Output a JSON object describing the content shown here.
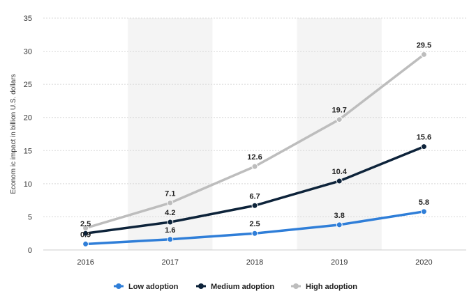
{
  "chart_data": {
    "type": "line",
    "x": [
      "2016",
      "2017",
      "2018",
      "2019",
      "2020"
    ],
    "ylabel": "Econom ic impact in billion U.S. dollars",
    "ylim": [
      0,
      35
    ],
    "yticks": [
      0,
      5,
      10,
      15,
      20,
      25,
      30,
      35
    ],
    "grid": true,
    "legend_position": "bottom-center",
    "series": [
      {
        "name": "Low adoption",
        "color": "#2f7ed8",
        "values": [
          0.9,
          1.6,
          2.5,
          3.8,
          5.8
        ],
        "labels": [
          "0.9",
          "1.6",
          "2.5",
          "3.8",
          "5.8"
        ]
      },
      {
        "name": "Medium adoption",
        "color": "#0d233a",
        "values": [
          2.5,
          4.2,
          6.7,
          10.4,
          15.6
        ],
        "labels": [
          "2.5",
          "4.2",
          "6.7",
          "10.4",
          "15.6"
        ]
      },
      {
        "name": "High adoption",
        "color": "#bdbdbd",
        "values": [
          3.3,
          7.1,
          12.6,
          19.7,
          29.5
        ],
        "labels": [
          "",
          "7.1",
          "12.6",
          "19.7",
          "29.5"
        ]
      }
    ]
  }
}
